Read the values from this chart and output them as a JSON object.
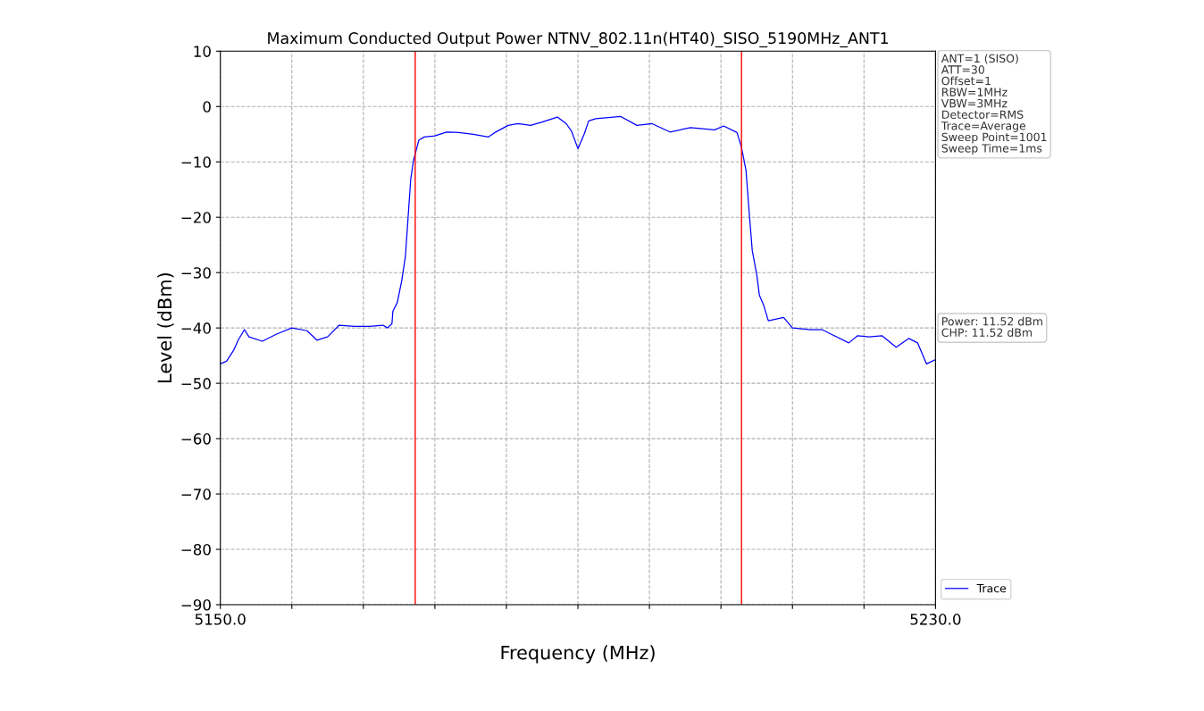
{
  "chart_data": {
    "type": "line",
    "title": "Maximum Conducted Output Power NTNV_802.11n(HT40)_SISO_5190MHz_ANT1",
    "xlabel": "Frequency (MHz)",
    "ylabel": "Level (dBm)",
    "series": [
      {
        "name": "Trace",
        "color": "#0000ff",
        "x": [
          5150,
          5150.7,
          5151.5,
          5152,
          5152.7,
          5153.2,
          5154.7,
          5156.3,
          5158,
          5159.7,
          5160.8,
          5162,
          5163.3,
          5165,
          5166.7,
          5168.2,
          5168.7,
          5169.2,
          5169.3,
          5169.8,
          5170.3,
          5170.7,
          5171,
          5171.3,
          5171.6,
          5172.2,
          5172.8,
          5174,
          5175.3,
          5176.7,
          5178.3,
          5180,
          5180.7,
          5182.2,
          5183.3,
          5184.7,
          5186,
          5187.7,
          5188.7,
          5189.3,
          5190,
          5190.7,
          5191.2,
          5192,
          5194.8,
          5196.6,
          5198.3,
          5200.3,
          5202.6,
          5205.3,
          5206.3,
          5207.8,
          5208.3,
          5208.8,
          5209.1,
          5209.5,
          5210,
          5210.3,
          5210.8,
          5211.3,
          5213,
          5214,
          5216,
          5217.3,
          5218.3,
          5220.3,
          5221.3,
          5222.6,
          5224,
          5225.6,
          5227,
          5228,
          5229,
          5230
        ],
        "values": [
          -46.5,
          -46,
          -44,
          -42.2,
          -40.3,
          -41.6,
          -42.4,
          -41.1,
          -40,
          -40.5,
          -42.2,
          -41.6,
          -39.5,
          -39.7,
          -39.7,
          -39.5,
          -40,
          -39.2,
          -37,
          -35.4,
          -31.4,
          -27.1,
          -20.1,
          -13.1,
          -9.8,
          -6.1,
          -5.5,
          -5.3,
          -4.6,
          -4.7,
          -5,
          -5.5,
          -4.7,
          -3.4,
          -3.1,
          -3.4,
          -2.8,
          -1.9,
          -3.1,
          -4.5,
          -7.6,
          -5,
          -2.6,
          -2.2,
          -1.8,
          -3.4,
          -3.1,
          -4.6,
          -3.8,
          -4.2,
          -3.5,
          -4.7,
          -7.4,
          -11.5,
          -17.9,
          -26,
          -30.3,
          -34.1,
          -36,
          -38.7,
          -38.1,
          -40,
          -40.3,
          -40.3,
          -41.1,
          -42.7,
          -41.4,
          -41.6,
          -41.4,
          -43.5,
          -41.9,
          -42.7,
          -46.5,
          -45.7
        ]
      }
    ],
    "xlim": [
      5150,
      5230
    ],
    "xticks": [
      {
        "value": 5150,
        "label": "5150.0"
      },
      {
        "value": 5158,
        "label": null
      },
      {
        "value": 5166,
        "label": null
      },
      {
        "value": 5174,
        "label": null
      },
      {
        "value": 5182,
        "label": null
      },
      {
        "value": 5190,
        "label": null
      },
      {
        "value": 5198,
        "label": null
      },
      {
        "value": 5206,
        "label": null
      },
      {
        "value": 5214,
        "label": null
      },
      {
        "value": 5222,
        "label": null
      },
      {
        "value": 5230,
        "label": "5230.0"
      }
    ],
    "ylim": [
      -90,
      10
    ],
    "yticks": [
      -90,
      -80,
      -70,
      -60,
      -50,
      -40,
      -30,
      -20,
      -10,
      0,
      10
    ],
    "ref_lines": [
      {
        "axis": "x",
        "value": 5171.8,
        "color": "#ff0000",
        "line_style": "solid"
      },
      {
        "axis": "x",
        "value": 5208.3,
        "color": "#ff0000",
        "line_style": "solid"
      }
    ],
    "annotations": [
      "ANT=1 (SISO)\nATT=30\nOffset=1\nRBW=1MHz\nVBW=3MHz\nDetector=RMS\nTrace=Average\nSweep Point=1001\nSweep Time=1ms",
      "Power: 11.52 dBm\nCHP: 11.52 dBm"
    ],
    "grid": true,
    "legend": "bottom right",
    "marker": "none",
    "line_style": "solid"
  }
}
